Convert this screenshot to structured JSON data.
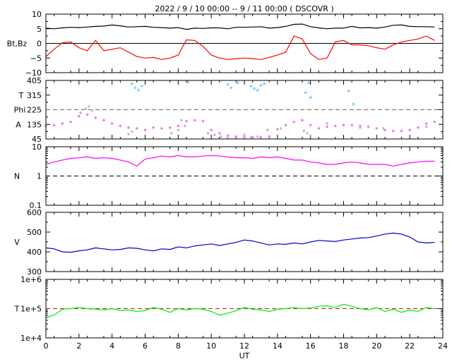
{
  "title": "2022 /  9 / 10   00:00  --  9 / 11   00:00 ( DSCOVR )",
  "x_axis": {
    "label": "UT",
    "range": [
      0,
      24
    ],
    "ticks": [
      0,
      2,
      4,
      6,
      8,
      10,
      12,
      14,
      16,
      18,
      20,
      22,
      24
    ],
    "tick_labels": [
      "0",
      "2",
      "4",
      "6",
      "8",
      "10",
      "12",
      "14",
      "16",
      "18",
      "20",
      "22",
      "24"
    ],
    "minor_step": 0.5
  },
  "chart_data": [
    {
      "type": "line",
      "panel": "magnetic",
      "ylabel": "Bt,Bz",
      "ylim": [
        -10,
        10
      ],
      "y_tick_labels": [
        "10",
        "5",
        "0",
        "−5",
        "−10"
      ],
      "y_ticks": [
        10,
        5,
        0,
        -5,
        -10
      ],
      "reference_line": {
        "y": 0,
        "color": "#000000",
        "style": "solid"
      },
      "series": [
        {
          "key": "Bt",
          "color": "#000000",
          "x": [
            0,
            0.5,
            1,
            1.5,
            2,
            2.5,
            3,
            3.5,
            4,
            4.5,
            5,
            5.5,
            6,
            6.5,
            7,
            7.5,
            8,
            8.5,
            9,
            9.5,
            10,
            10.5,
            11,
            11.5,
            12,
            12.5,
            13,
            13.5,
            14,
            14.5,
            15,
            15.5,
            16,
            16.5,
            17,
            17.5,
            18,
            18.5,
            19,
            19.5,
            20,
            20.5,
            21,
            21.5,
            22,
            22.5,
            23,
            23.5
          ],
          "values": [
            5.2,
            5.0,
            5.3,
            5.5,
            5.4,
            5.6,
            5.8,
            5.9,
            6.3,
            6.0,
            5.6,
            5.7,
            5.8,
            5.5,
            5.4,
            5.2,
            5.4,
            4.8,
            5.2,
            5.1,
            5.3,
            5.3,
            5.0,
            5.5,
            5.5,
            5.6,
            5.7,
            5.2,
            5.4,
            5.8,
            6.5,
            6.6,
            5.7,
            5.3,
            5.0,
            5.2,
            5.2,
            5.8,
            5.3,
            5.4,
            5.2,
            5.6,
            6.2,
            6.3,
            5.8,
            5.7,
            5.7,
            5.6
          ]
        },
        {
          "key": "Bz",
          "color": "#ff0000",
          "x": [
            0,
            0.5,
            1,
            1.5,
            2,
            2.5,
            3,
            3.5,
            4,
            4.5,
            5,
            5.5,
            6,
            6.5,
            7,
            7.5,
            8,
            8.5,
            9,
            9.5,
            10,
            10.5,
            11,
            11.5,
            12,
            12.5,
            13,
            13.5,
            14,
            14.5,
            15,
            15.5,
            16,
            16.5,
            17,
            17.5,
            18,
            18.5,
            19,
            19.5,
            20,
            20.5,
            21,
            21.5,
            22,
            22.5,
            23,
            23.5
          ],
          "values": [
            -4.5,
            -2.0,
            0.2,
            0.5,
            -1.5,
            -2.5,
            1.0,
            -2.5,
            -2.0,
            -1.5,
            -3.0,
            -4.5,
            -5.0,
            -4.8,
            -5.5,
            -5.0,
            -4.0,
            1.2,
            1.0,
            -1.0,
            -4.0,
            -5.0,
            -5.5,
            -5.2,
            -5.0,
            -5.2,
            -5.5,
            -4.8,
            -4.0,
            -3.0,
            2.5,
            1.5,
            -3.5,
            -5.5,
            -5.0,
            0.5,
            1.0,
            -0.5,
            -0.5,
            -0.8,
            -1.5,
            -2.0,
            -0.5,
            0.5,
            1.0,
            1.5,
            2.5,
            1.0
          ]
        }
      ]
    },
    {
      "type": "scatter",
      "panel": "angles",
      "ylabel_top": "T",
      "ylabel_mid": "Phi",
      "ylabel_bottom": "A",
      "ylim": [
        45,
        405
      ],
      "y_ticks": [
        405,
        315,
        225,
        135,
        45
      ],
      "y_tick_labels": [
        "405",
        "315",
        "225",
        "135",
        "45"
      ],
      "reference_line": {
        "y": 225,
        "color": "#8b5a3c",
        "style": "dashed"
      },
      "series": [
        {
          "key": "Phi",
          "color": "#87cefa",
          "x": [
            5.2,
            5.4,
            5.6,
            5.8,
            8.6,
            11.0,
            11.2,
            11.6,
            12.4,
            12.6,
            12.8,
            13.0,
            13.2,
            15.7,
            15.9,
            16.0,
            18.3,
            18.6
          ],
          "values": [
            385,
            360,
            345,
            370,
            395,
            380,
            360,
            390,
            370,
            355,
            345,
            375,
            385,
            330,
            390,
            300,
            340,
            260
          ]
        },
        {
          "key": "Bt_angle",
          "color": "#c0c0c0",
          "x": [
            2.1,
            2.4,
            2.6,
            2.8,
            5.0,
            5.2,
            7.6,
            8.0,
            8.2,
            8.4,
            9.8,
            10.2,
            10.6,
            11.0,
            12.0,
            12.4,
            12.8,
            13.4,
            14.2,
            15.6,
            15.8,
            16.0,
            17.0,
            18.0,
            19.0,
            20.4,
            23.0
          ],
          "values": [
            205,
            230,
            245,
            220,
            75,
            90,
            80,
            100,
            160,
            125,
            80,
            70,
            60,
            50,
            70,
            55,
            60,
            100,
            110,
            95,
            80,
            65,
            140,
            130,
            115,
            110,
            120
          ]
        },
        {
          "key": "A",
          "color": "#ee82ee",
          "x": [
            0,
            0.5,
            1,
            1.5,
            2,
            2.5,
            3,
            3.5,
            4,
            4.5,
            5,
            5.5,
            6,
            6.5,
            7,
            7.5,
            8,
            8.5,
            9,
            9.5,
            10,
            10.5,
            11,
            11.5,
            12,
            12.5,
            13,
            13.5,
            14,
            14.5,
            15,
            15.5,
            16,
            16.5,
            17,
            17.5,
            18,
            18.5,
            19,
            19.5,
            20,
            20.5,
            21,
            21.5,
            22,
            22.5,
            23,
            23.5
          ],
          "values": [
            125,
            130,
            140,
            150,
            185,
            195,
            175,
            160,
            140,
            125,
            115,
            110,
            100,
            115,
            110,
            115,
            125,
            155,
            160,
            155,
            100,
            80,
            65,
            60,
            55,
            55,
            55,
            60,
            105,
            130,
            150,
            160,
            130,
            110,
            120,
            125,
            130,
            130,
            125,
            120,
            110,
            100,
            95,
            95,
            100,
            115,
            140,
            150
          ]
        }
      ]
    },
    {
      "type": "line",
      "panel": "density",
      "ylabel": "N",
      "yscale": "log",
      "ylim": [
        0.1,
        10
      ],
      "y_ticks": [
        10,
        1,
        0.1
      ],
      "y_tick_labels": [
        "10",
        "1",
        "0.1"
      ],
      "reference_line": {
        "y": 1,
        "color": "#000000",
        "style": "dashed"
      },
      "series": [
        {
          "key": "N",
          "color": "#ff00ff",
          "x": [
            0,
            0.5,
            1,
            1.5,
            2,
            2.5,
            3,
            3.5,
            4,
            4.5,
            5,
            5.5,
            6,
            6.5,
            7,
            7.5,
            8,
            8.5,
            9,
            9.5,
            10,
            10.5,
            11,
            11.5,
            12,
            12.5,
            13,
            13.5,
            14,
            14.5,
            15,
            15.5,
            16,
            16.5,
            17,
            17.5,
            18,
            18.5,
            19,
            19.5,
            20,
            20.5,
            21,
            21.5,
            22,
            22.5,
            23,
            23.5
          ],
          "values": [
            2.5,
            3.0,
            3.5,
            4.0,
            4.2,
            4.5,
            4.0,
            4.2,
            4.0,
            3.5,
            3.0,
            2.2,
            3.8,
            4.2,
            4.8,
            4.5,
            5.0,
            4.5,
            4.5,
            4.8,
            5.0,
            4.8,
            4.5,
            4.2,
            4.2,
            4.0,
            4.5,
            4.2,
            4.5,
            4.0,
            3.5,
            3.5,
            3.0,
            2.8,
            2.5,
            2.5,
            2.8,
            3.0,
            2.8,
            2.5,
            2.5,
            2.5,
            2.2,
            2.5,
            2.8,
            3.0,
            3.2,
            3.2
          ]
        }
      ]
    },
    {
      "type": "line",
      "panel": "velocity",
      "ylabel": "V",
      "ylim": [
        300,
        600
      ],
      "y_ticks": [
        600,
        500,
        400,
        300
      ],
      "y_tick_labels": [
        "600",
        "500",
        "400",
        "300"
      ],
      "series": [
        {
          "key": "V",
          "color": "#0000cd",
          "x": [
            0,
            0.5,
            1,
            1.5,
            2,
            2.5,
            3,
            3.5,
            4,
            4.5,
            5,
            5.5,
            6,
            6.5,
            7,
            7.5,
            8,
            8.5,
            9,
            9.5,
            10,
            10.5,
            11,
            11.5,
            12,
            12.5,
            13,
            13.5,
            14,
            14.5,
            15,
            15.5,
            16,
            16.5,
            17,
            17.5,
            18,
            18.5,
            19,
            19.5,
            20,
            20.5,
            21,
            21.5,
            22,
            22.5,
            23,
            23.5
          ],
          "values": [
            420,
            415,
            400,
            398,
            405,
            410,
            420,
            415,
            410,
            412,
            420,
            418,
            410,
            405,
            415,
            412,
            425,
            420,
            430,
            435,
            440,
            432,
            440,
            448,
            460,
            455,
            445,
            435,
            440,
            438,
            445,
            440,
            450,
            458,
            455,
            452,
            460,
            465,
            470,
            472,
            480,
            490,
            495,
            490,
            475,
            450,
            445,
            448
          ]
        }
      ]
    },
    {
      "type": "line",
      "panel": "temperature",
      "ylabel": "T",
      "yscale": "log",
      "ylim": [
        10000,
        1000000
      ],
      "y_ticks": [
        1000000,
        100000,
        10000
      ],
      "y_tick_labels": [
        "1e+6",
        "1e+5",
        "1e+4"
      ],
      "reference_line": {
        "y": 100000,
        "color": "#b22222",
        "style": "dashed"
      },
      "series": [
        {
          "key": "T",
          "color": "#00ee00",
          "x": [
            0,
            0.5,
            1,
            1.5,
            2,
            2.5,
            3,
            3.5,
            4,
            4.5,
            5,
            5.5,
            6,
            6.5,
            7,
            7.5,
            8,
            8.5,
            9,
            9.5,
            10,
            10.5,
            11,
            11.5,
            12,
            12.5,
            13,
            13.5,
            14,
            14.5,
            15,
            15.5,
            16,
            16.5,
            17,
            17.5,
            18,
            18.5,
            19,
            19.5,
            20,
            20.5,
            21,
            21.5,
            22,
            22.5,
            23,
            23.5
          ],
          "values": [
            50000,
            60000,
            95000,
            100000,
            110000,
            100000,
            95000,
            90000,
            100000,
            85000,
            90000,
            80000,
            85000,
            110000,
            95000,
            75000,
            100000,
            90000,
            100000,
            95000,
            80000,
            60000,
            70000,
            85000,
            110000,
            95000,
            90000,
            80000,
            95000,
            100000,
            110000,
            100000,
            105000,
            120000,
            125000,
            110000,
            140000,
            120000,
            100000,
            90000,
            110000,
            80000,
            95000,
            75000,
            90000,
            80000,
            110000,
            100000
          ]
        }
      ]
    }
  ]
}
